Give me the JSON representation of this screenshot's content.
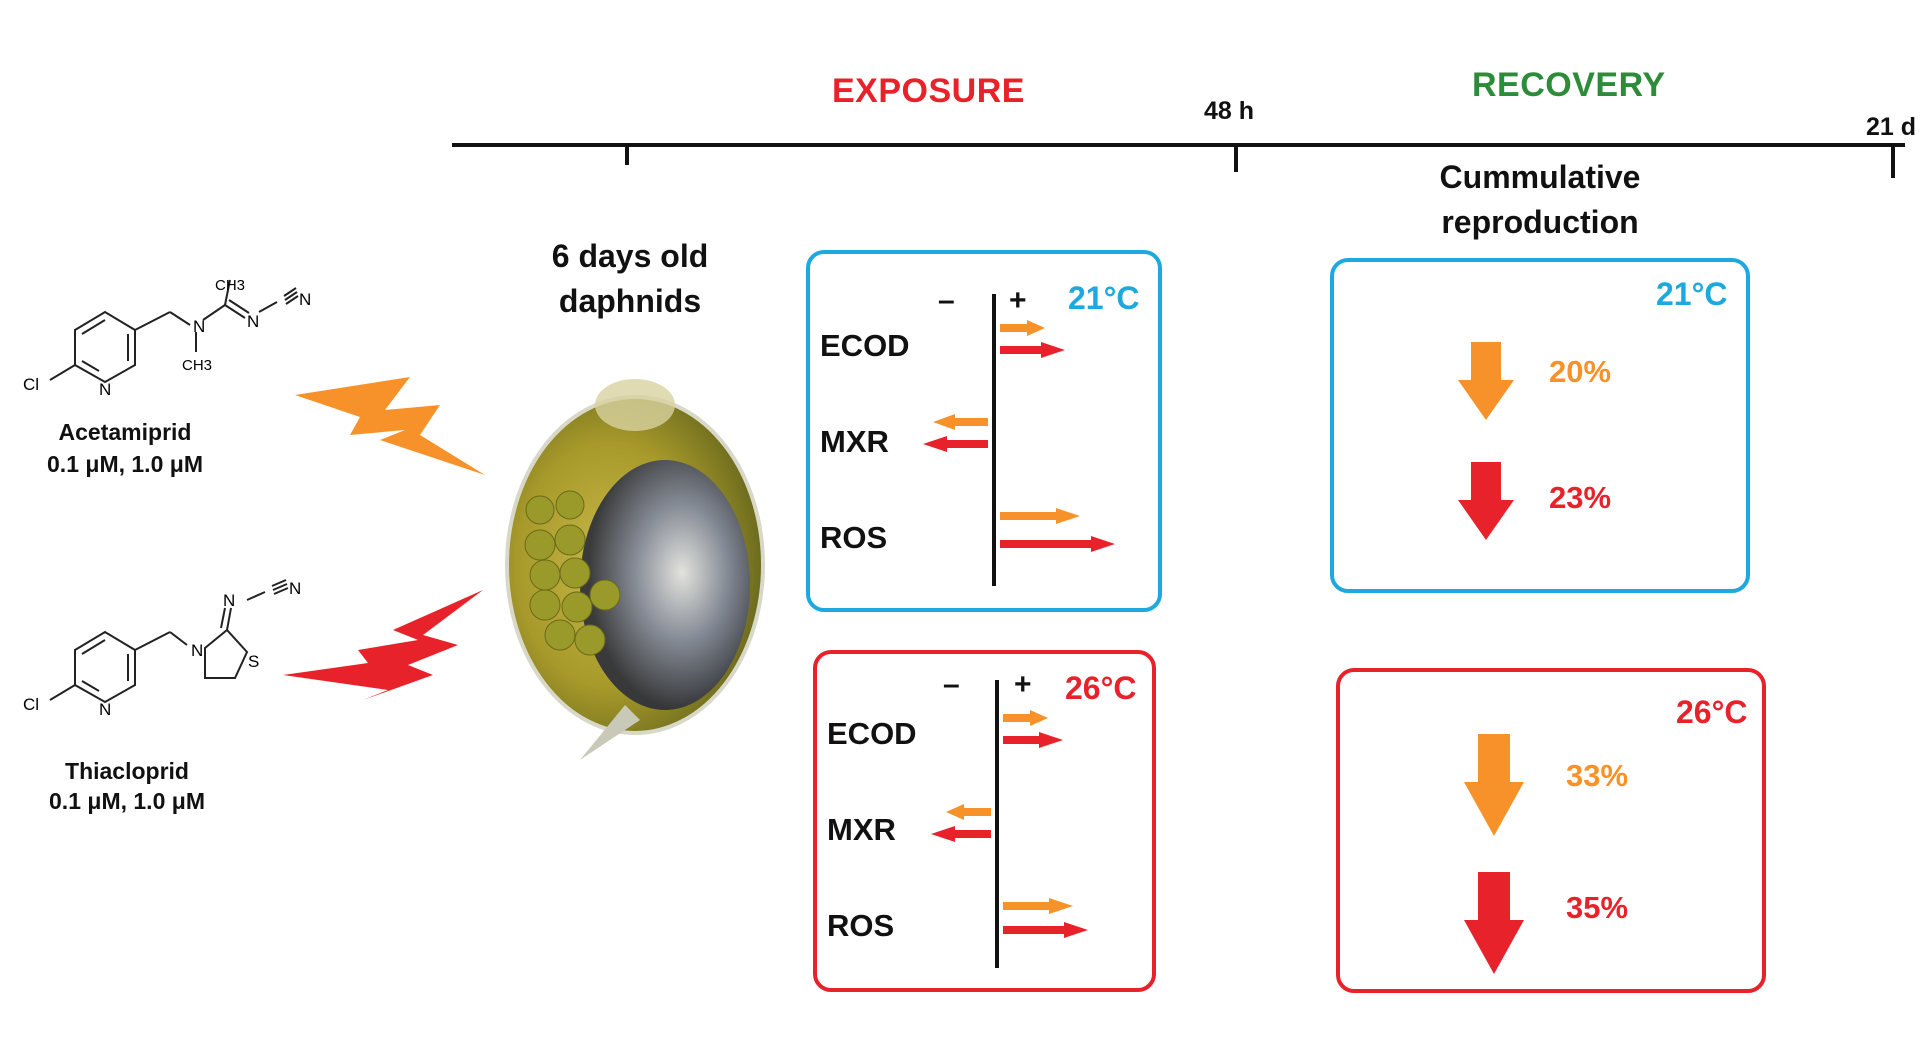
{
  "timeline": {
    "exposure_label": "EXPOSURE",
    "recovery_label": "RECOVERY",
    "tick_48h": "48 h",
    "tick_21d": "21 d"
  },
  "compounds": [
    {
      "name": "Acetamiprid",
      "conc": "0.1 μM, 1.0  μM",
      "substituents": {
        "ch3_top": "CH3",
        "ch3_bottom": "CH3",
        "n1": "N",
        "n2": "N",
        "n3": "N",
        "cl": "Cl",
        "ring_n": "N"
      }
    },
    {
      "name": "Thiacloprid",
      "conc": "0.1 μM, 1.0  μM",
      "substituents": {
        "n1": "N",
        "n2": "N",
        "n3": "N",
        "s": "S",
        "cl": "Cl",
        "ring_n": "N"
      }
    }
  ],
  "organism": {
    "line1": "6 days old",
    "line2": "daphnids"
  },
  "recovery_title": {
    "line1": "Cummulative",
    "line2": "reproduction"
  },
  "colors": {
    "blue": "#1ea8e0",
    "red": "#e8222a",
    "orange": "#f7922a",
    "green": "#2e8b3a",
    "header_red": "#e8222a"
  },
  "exposure_panels": [
    {
      "temperature": "21°C",
      "minus": "–",
      "plus": "+",
      "rows": [
        {
          "label": "ECOD",
          "orange_effect": 0.45,
          "red_effect": 0.65
        },
        {
          "label": "MXR",
          "orange_effect": -0.55,
          "red_effect": -0.65
        },
        {
          "label": "ROS",
          "orange_effect": 0.8,
          "red_effect": 1.15
        }
      ]
    },
    {
      "temperature": "26°C",
      "minus": "–",
      "plus": "+",
      "rows": [
        {
          "label": "ECOD",
          "orange_effect": 0.45,
          "red_effect": 0.6
        },
        {
          "label": "MXR",
          "orange_effect": -0.45,
          "red_effect": -0.6
        },
        {
          "label": "ROS",
          "orange_effect": 0.7,
          "red_effect": 0.85
        }
      ]
    }
  ],
  "recovery_panels": [
    {
      "temperature": "21°C",
      "items": [
        {
          "value": "20%",
          "color": "orange"
        },
        {
          "value": "23%",
          "color": "red"
        }
      ]
    },
    {
      "temperature": "26°C",
      "items": [
        {
          "value": "33%",
          "color": "orange"
        },
        {
          "value": "35%",
          "color": "red"
        }
      ]
    }
  ]
}
